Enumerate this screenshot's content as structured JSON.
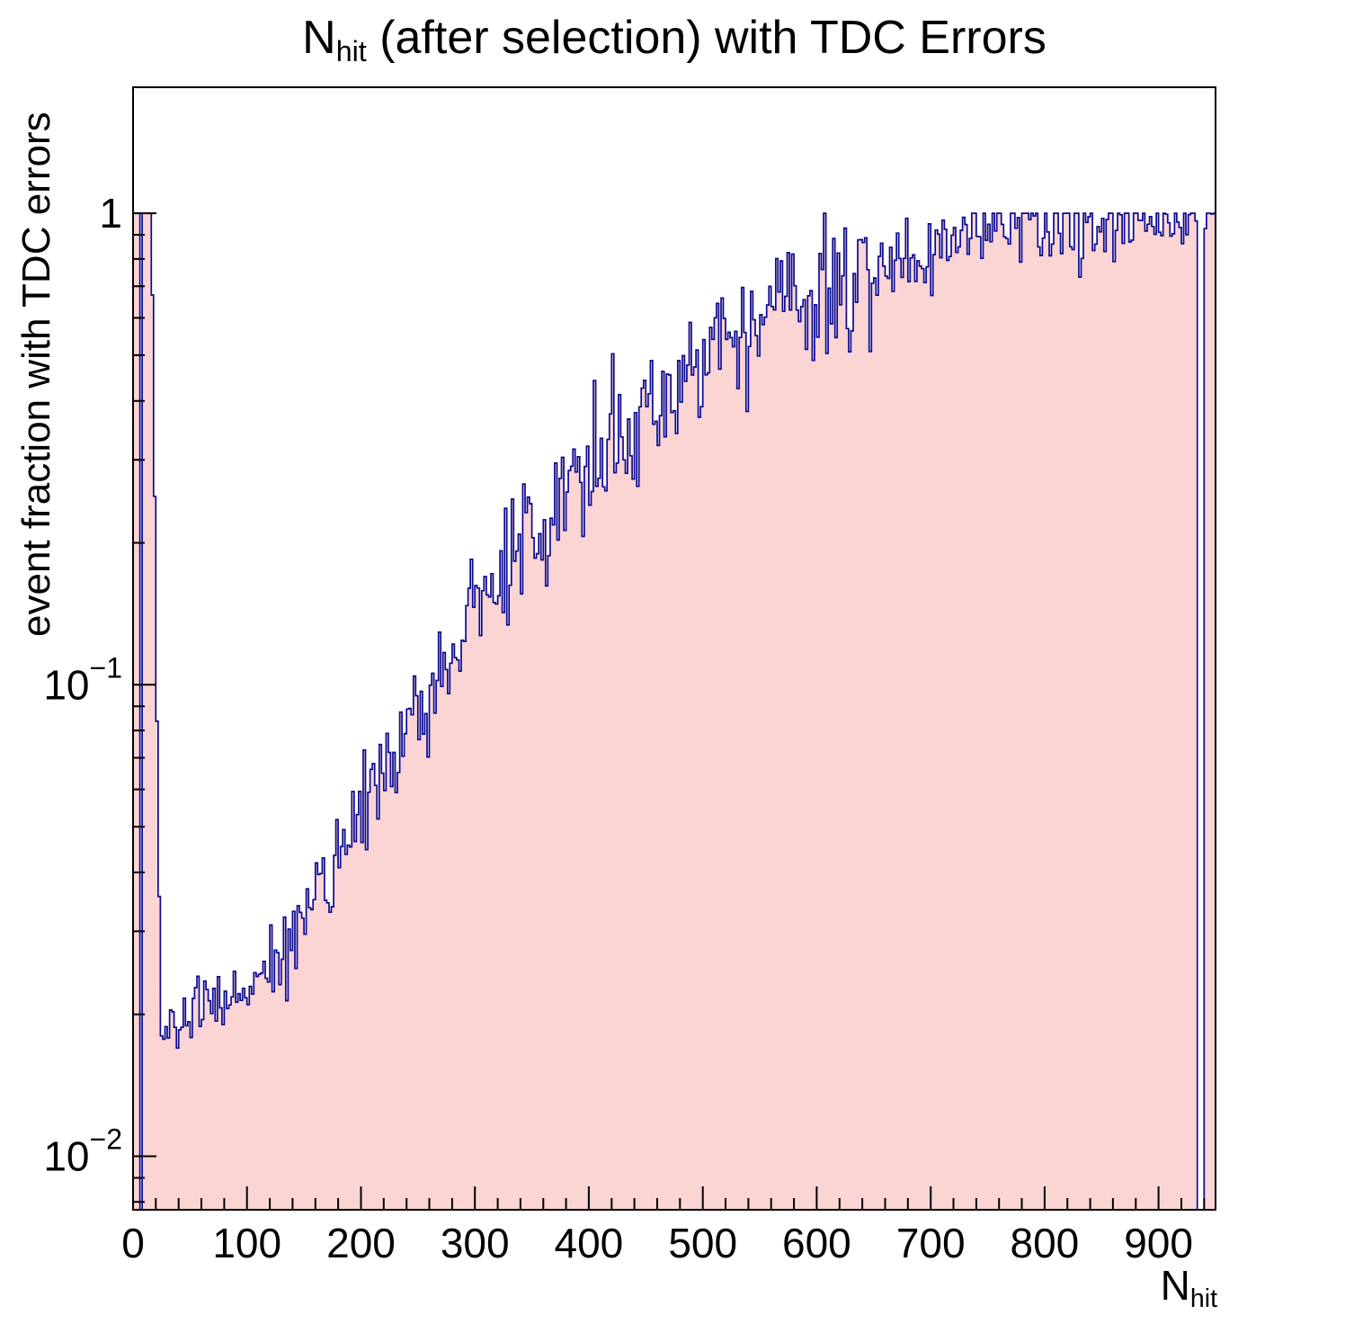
{
  "title": {
    "pre": "N",
    "sub": "hit",
    "post": " (after selection) with TDC Errors"
  },
  "x_axis": {
    "title_pre": "N",
    "title_sub": "hit",
    "min": 0,
    "max": 950,
    "major_step": 100,
    "minor_step": 20,
    "ticks": [
      0,
      100,
      200,
      300,
      400,
      500,
      600,
      700,
      800,
      900
    ]
  },
  "y_axis": {
    "label": "event fraction with TDC errors",
    "scale": "log",
    "majors": [
      {
        "value": 1,
        "base": "1",
        "exp": ""
      },
      {
        "value": 0.1,
        "base": "10",
        "exp": "−1"
      },
      {
        "value": 0.01,
        "base": "10",
        "exp": "−2"
      }
    ]
  },
  "chart_data": {
    "type": "histogram",
    "title": "N_hit (after selection) with TDC Errors",
    "xlabel": "N_hit",
    "ylabel": "event fraction with TDC errors",
    "log_y": true,
    "x_range": [
      0,
      950
    ],
    "y_range": [
      0.0077,
      1.85
    ],
    "bin_width": 2,
    "clamp_max": 1.0,
    "seed": 20240917,
    "colors": {
      "fill": "#fbd4d4",
      "line": "#0a0a90",
      "axis": "#000000"
    },
    "envelope_points": [
      [
        0,
        1.0
      ],
      [
        16,
        1.0
      ],
      [
        18,
        0.45
      ],
      [
        20,
        0.14
      ],
      [
        22,
        0.05
      ],
      [
        25,
        0.018
      ],
      [
        35,
        0.019
      ],
      [
        50,
        0.021
      ],
      [
        70,
        0.0205
      ],
      [
        90,
        0.022
      ],
      [
        110,
        0.025
      ],
      [
        130,
        0.028
      ],
      [
        150,
        0.032
      ],
      [
        170,
        0.04
      ],
      [
        190,
        0.048
      ],
      [
        210,
        0.06
      ],
      [
        230,
        0.072
      ],
      [
        250,
        0.088
      ],
      [
        270,
        0.105
      ],
      [
        290,
        0.13
      ],
      [
        310,
        0.155
      ],
      [
        330,
        0.18
      ],
      [
        350,
        0.21
      ],
      [
        370,
        0.24
      ],
      [
        390,
        0.28
      ],
      [
        410,
        0.31
      ],
      [
        430,
        0.35
      ],
      [
        450,
        0.39
      ],
      [
        470,
        0.43
      ],
      [
        490,
        0.47
      ],
      [
        510,
        0.52
      ],
      [
        530,
        0.56
      ],
      [
        550,
        0.6
      ],
      [
        570,
        0.64
      ],
      [
        590,
        0.67
      ],
      [
        610,
        0.7
      ],
      [
        630,
        0.73
      ],
      [
        650,
        0.76
      ],
      [
        670,
        0.79
      ],
      [
        690,
        0.82
      ],
      [
        710,
        0.85
      ],
      [
        730,
        0.88
      ],
      [
        750,
        0.9
      ],
      [
        770,
        0.92
      ],
      [
        790,
        0.94
      ],
      [
        810,
        0.95
      ],
      [
        830,
        0.96
      ],
      [
        850,
        0.97
      ],
      [
        870,
        0.975
      ],
      [
        890,
        0.98
      ],
      [
        910,
        0.985
      ],
      [
        932,
        0.99
      ],
      [
        941,
        1.0
      ],
      [
        950,
        1.0
      ]
    ],
    "empty_ranges": [
      [
        7,
        9
      ],
      [
        934,
        940
      ]
    ],
    "noise_sigma_log10": [
      {
        "until": 26,
        "sigma": 0
      },
      {
        "until": 40,
        "sigma": 0.025
      },
      {
        "until": 120,
        "sigma": 0.035
      },
      {
        "until": 300,
        "sigma": 0.06
      },
      {
        "until": 650,
        "sigma": 0.07
      },
      {
        "until": 880,
        "sigma": 0.05
      },
      {
        "until": 950,
        "sigma": 0.03
      }
    ]
  }
}
